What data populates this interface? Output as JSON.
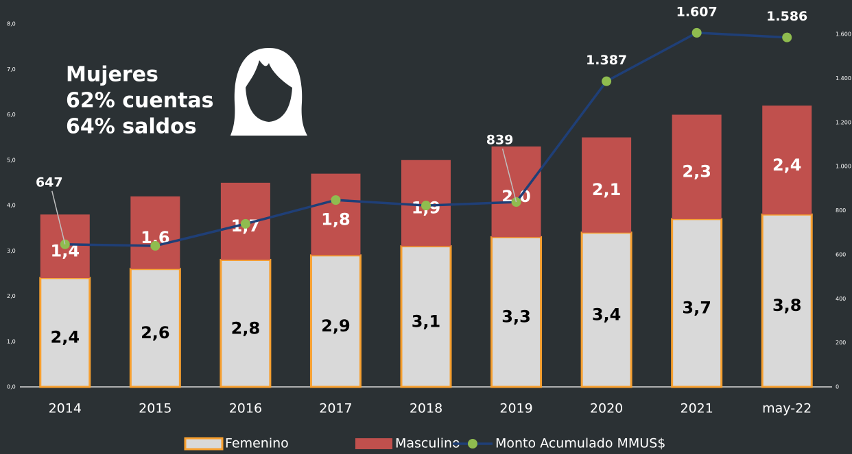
{
  "chart_data": {
    "type": "bar",
    "categories": [
      "2014",
      "2015",
      "2016",
      "2017",
      "2018",
      "2019",
      "2020",
      "2021",
      "may-22"
    ],
    "series": [
      {
        "name": "Femenino",
        "color": "#d9d9d9",
        "values": [
          2.4,
          2.6,
          2.8,
          2.9,
          3.1,
          3.3,
          3.4,
          3.7,
          3.8
        ],
        "value_labels": [
          "2,4",
          "2,6",
          "2,8",
          "2,9",
          "3,1",
          "3,3",
          "3,4",
          "3,7",
          "3,8"
        ]
      },
      {
        "name": "Masculino",
        "color": "#c0504d",
        "values": [
          1.4,
          1.6,
          1.7,
          1.8,
          1.9,
          2.0,
          2.1,
          2.3,
          2.4
        ],
        "value_labels": [
          "1,4",
          "1,6",
          "1,7",
          "1,8",
          "1,9",
          "2,0",
          "2,1",
          "2,3",
          "2,4"
        ]
      },
      {
        "name": "Monto Acumulado MMUS$",
        "type": "line",
        "axis": "y2",
        "color": "#1f3f77",
        "marker_color": "#8fbc4f",
        "values": [
          647,
          640,
          740,
          848,
          823,
          839,
          1387,
          1607,
          1586
        ],
        "value_labels": [
          "647",
          null,
          null,
          null,
          null,
          "839",
          "1.387",
          "1.607",
          "1.586"
        ]
      }
    ],
    "annotation": [
      "Mujeres",
      "62% cuentas",
      "64% saldos"
    ],
    "ylim": [
      0,
      8
    ],
    "yticks": [
      {
        "value": 0,
        "label": "0,0"
      },
      {
        "value": 1,
        "label": "1,0"
      },
      {
        "value": 2,
        "label": "2,0"
      },
      {
        "value": 3,
        "label": "3,0"
      },
      {
        "value": 4,
        "label": "4,0"
      },
      {
        "value": 5,
        "label": "5,0"
      },
      {
        "value": 6,
        "label": "6,0"
      },
      {
        "value": 7,
        "label": "7,0"
      },
      {
        "value": 8,
        "label": "8,0"
      }
    ],
    "y2lim": [
      0,
      1647
    ],
    "y2ticks": [
      0,
      200,
      400,
      600,
      800,
      {
        "value": 1000,
        "label": "1.000"
      },
      {
        "value": 1200,
        "label": "1.200"
      },
      {
        "value": 1400,
        "label": "1.400"
      },
      {
        "value": 1600,
        "label": "1.600"
      }
    ],
    "bar_edge_color": "#f7a030",
    "grid": false
  }
}
